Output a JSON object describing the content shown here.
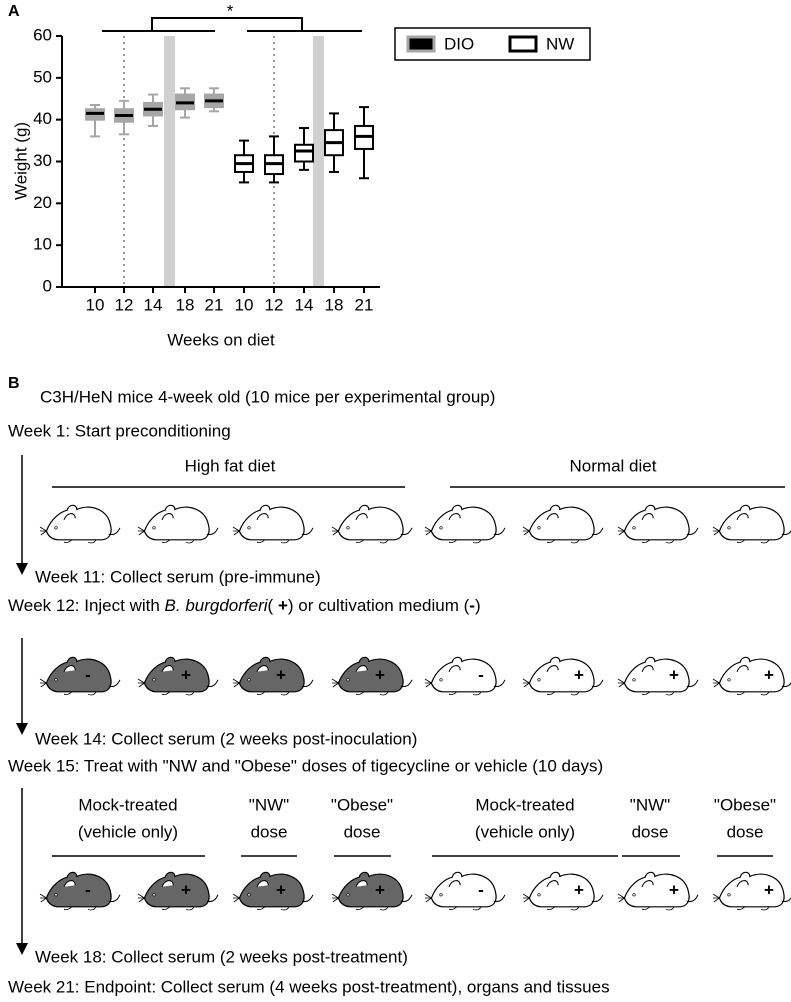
{
  "panel_a_label": "A",
  "chart_data": {
    "type": "box",
    "significance": "*",
    "xlabel": "Weeks on diet",
    "ylabel": "Weight (g)",
    "categories": [
      "10",
      "12",
      "14",
      "18",
      "21"
    ],
    "ylim": [
      0,
      60
    ],
    "yticks": [
      0,
      10,
      20,
      30,
      40,
      50,
      60
    ],
    "series": [
      {
        "name": "DIO",
        "color": "#000000",
        "edge": "#a6a6a6",
        "min": [
          36,
          36.5,
          38.5,
          40.5,
          42
        ],
        "q1": [
          40,
          39.5,
          41,
          42.5,
          43
        ],
        "median": [
          41.5,
          41,
          42.5,
          44,
          44.5
        ],
        "q3": [
          42.5,
          42.5,
          44,
          46,
          46
        ],
        "max": [
          43.5,
          44.5,
          46,
          47.5,
          47.5
        ]
      },
      {
        "name": "NW",
        "color": "#ffffff",
        "edge": "#000000",
        "min": [
          25,
          25,
          28,
          27.5,
          26
        ],
        "q1": [
          27.5,
          27,
          30,
          31.5,
          33
        ],
        "median": [
          29.5,
          29.5,
          32.5,
          34.5,
          36
        ],
        "q3": [
          31.5,
          31.5,
          34,
          37.5,
          38.5
        ],
        "max": [
          35,
          36,
          38,
          41.5,
          43
        ]
      }
    ]
  },
  "panel_b": {
    "label": "B",
    "header": "C3H/HeN mice 4-week old (10 mice per experimental group)",
    "week1": "Week 1: Start preconditioning",
    "diet_groups": [
      "High fat diet",
      "Normal diet"
    ],
    "week11": "Week 11: Collect serum (pre-immune)",
    "week12": [
      {
        "text": "Week 12: Inject with "
      },
      {
        "text": "B. burgdorferi",
        "style": "italic"
      },
      {
        "text": "( "
      },
      {
        "text": "+",
        "style": "bold"
      },
      {
        "text": ") or cultivation medium ("
      },
      {
        "text": "-",
        "style": "bold"
      },
      {
        "text": ")"
      }
    ],
    "week14": "Week 14: Collect serum (2 weeks post-inoculation)",
    "week15": "Week 15: Treat with \"NW and \"Obese\" doses of tigecycline or vehicle (10 days)",
    "treatment_groups": [
      [
        "Mock-treated",
        "(vehicle only)"
      ],
      [
        "\"NW\"",
        "dose"
      ],
      [
        "\"Obese\"",
        "dose"
      ],
      [
        "Mock-treated",
        "(vehicle only)"
      ],
      [
        "\"NW\"",
        "dose"
      ],
      [
        "\"Obese\"",
        "dose"
      ]
    ],
    "week18": "Week 18: Collect serum (2 weeks post-treatment)",
    "week21": "Week 21: Endpoint: Collect serum (4 weeks post-treatment), organs and tissues",
    "mouse_rows": [
      {
        "fills": [
          "#ffffff",
          "#ffffff",
          "#ffffff",
          "#ffffff",
          "#ffffff",
          "#ffffff",
          "#ffffff",
          "#ffffff"
        ]
      },
      {
        "fills": [
          "#666666",
          "#666666",
          "#666666",
          "#666666",
          "#ffffff",
          "#ffffff",
          "#ffffff",
          "#ffffff"
        ],
        "signs": [
          "-",
          "+",
          "+",
          "+",
          "-",
          "+",
          "+",
          "+"
        ]
      },
      {
        "fills": [
          "#666666",
          "#666666",
          "#666666",
          "#666666",
          "#ffffff",
          "#ffffff",
          "#ffffff",
          "#ffffff"
        ],
        "signs": [
          "-",
          "+",
          "+",
          "+",
          "-",
          "+",
          "+",
          "+"
        ]
      }
    ]
  }
}
